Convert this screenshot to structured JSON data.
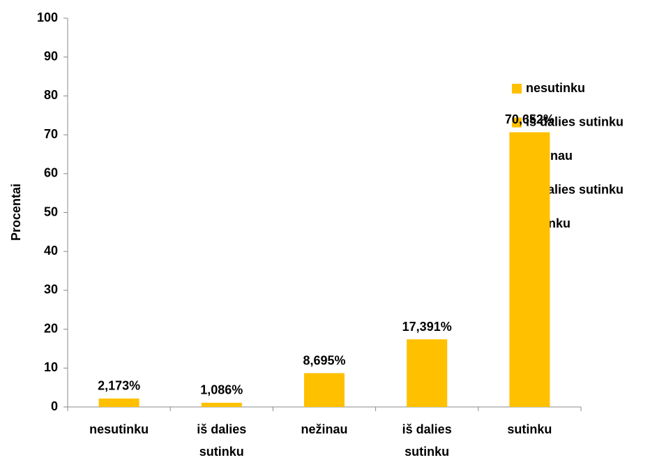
{
  "chart_data": {
    "type": "bar",
    "y_axis_label": "Procentai",
    "categories": [
      "nesutinku",
      "iš dalies sutinku",
      "nežinau",
      "iš dalies sutinku",
      "sutinku"
    ],
    "values": [
      2.173,
      1.086,
      8.695,
      17.391,
      70.652
    ],
    "value_labels": [
      "2,173%",
      "1,086%",
      "8,695%",
      "17,391%",
      "70,652%"
    ],
    "color": "#ffc000",
    "ylim": [
      0,
      100
    ],
    "yticks": [
      0,
      10,
      20,
      30,
      40,
      50,
      60,
      70,
      80,
      90,
      100
    ],
    "grid": false,
    "legend": "right"
  }
}
